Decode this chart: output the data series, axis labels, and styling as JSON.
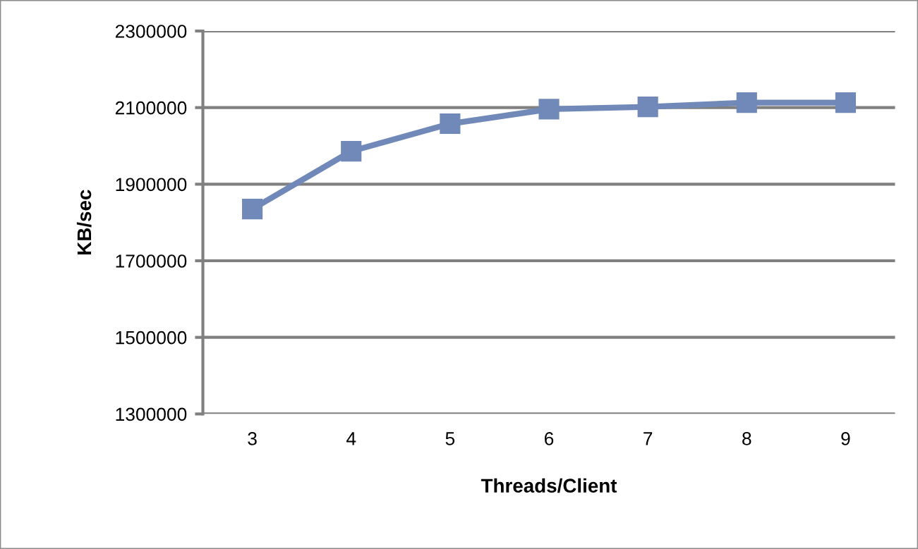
{
  "chart_data": {
    "type": "line",
    "xlabel": "Threads/Client",
    "ylabel": "KB/sec",
    "categories": [
      "3",
      "4",
      "5",
      "6",
      "7",
      "8",
      "9"
    ],
    "series": [
      {
        "color": "#7189b9",
        "values": [
          1835000,
          1986000,
          2058000,
          2096000,
          2102000,
          2113000,
          2113000
        ]
      }
    ],
    "ylim": [
      1300000,
      2300000
    ],
    "yticks": [
      1300000,
      1500000,
      1700000,
      1900000,
      2100000,
      2300000
    ],
    "grid": "y",
    "marker": "square",
    "line_style": "solid"
  }
}
